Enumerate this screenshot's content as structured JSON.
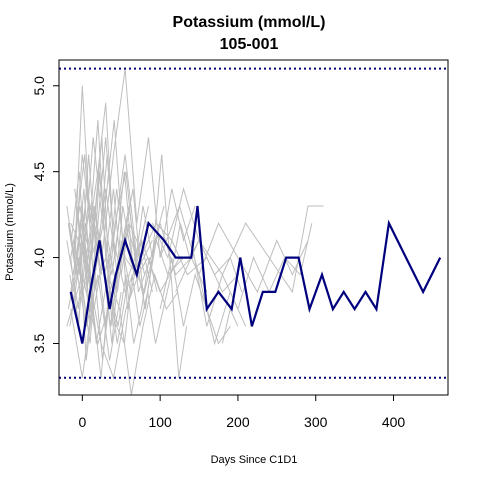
{
  "chart_data": {
    "type": "line",
    "title": "Potassium (mmol/L)",
    "subtitle": "105-001",
    "xlabel": "Days Since C1D1",
    "ylabel": "Potassium (mmol/L)",
    "xlim": [
      -30,
      470
    ],
    "ylim": [
      3.2,
      5.15
    ],
    "xticks": [
      0,
      100,
      200,
      300,
      400
    ],
    "yticks": [
      3.5,
      4.0,
      4.5,
      5.0
    ],
    "reference_lines": [
      5.1,
      3.3
    ],
    "grid": false,
    "legend": "none",
    "highlight_color": "#00007F",
    "background_color": "#BEBEBE",
    "highlight_series": {
      "x": [
        -15,
        0,
        10,
        22,
        35,
        43,
        55,
        70,
        85,
        105,
        120,
        140,
        148,
        160,
        175,
        192,
        203,
        218,
        232,
        248,
        262,
        278,
        292,
        308,
        322,
        336,
        350,
        364,
        378,
        394,
        416,
        438,
        460
      ],
      "y": [
        3.8,
        3.5,
        3.8,
        4.1,
        3.7,
        3.9,
        4.1,
        3.9,
        4.2,
        4.1,
        4.0,
        4.0,
        4.3,
        3.7,
        3.8,
        3.7,
        4.0,
        3.6,
        3.8,
        3.8,
        4.0,
        4.0,
        3.7,
        3.9,
        3.7,
        3.8,
        3.7,
        3.8,
        3.7,
        4.2,
        4.0,
        3.8,
        4.0
      ]
    },
    "background_series": [
      {
        "x": [
          -15,
          5,
          15,
          28,
          40,
          55,
          75,
          95,
          115,
          135,
          160,
          180,
          200
        ],
        "y": [
          4.2,
          4.0,
          4.3,
          3.9,
          4.1,
          3.8,
          4.0,
          4.2,
          4.1,
          3.9,
          4.0,
          3.8,
          3.9
        ]
      },
      {
        "x": [
          -10,
          0,
          10,
          22,
          35,
          50,
          65,
          80,
          95,
          110,
          130
        ],
        "y": [
          3.9,
          4.3,
          3.6,
          4.5,
          3.8,
          4.0,
          4.4,
          3.7,
          4.1,
          3.9,
          4.0
        ]
      },
      {
        "x": [
          -20,
          -5,
          8,
          18,
          30,
          45,
          60
        ],
        "y": [
          4.1,
          3.7,
          4.6,
          4.0,
          4.4,
          3.9,
          4.2
        ]
      },
      {
        "x": [
          -15,
          -2,
          12,
          25,
          38,
          52,
          68,
          90
        ],
        "y": [
          3.8,
          4.2,
          4.0,
          4.7,
          3.6,
          4.3,
          3.9,
          4.1
        ]
      },
      {
        "x": [
          -12,
          3,
          14,
          27,
          41,
          58,
          76,
          100,
          125
        ],
        "y": [
          4.0,
          4.6,
          3.9,
          4.2,
          4.8,
          3.7,
          4.1,
          3.8,
          4.0
        ]
      },
      {
        "x": [
          -18,
          -5,
          10,
          20,
          32,
          44,
          55,
          70
        ],
        "y": [
          3.7,
          4.0,
          3.5,
          4.1,
          3.8,
          4.4,
          4.0,
          3.9
        ]
      },
      {
        "x": [
          -8,
          5,
          18,
          30,
          42,
          56,
          72,
          88,
          105
        ],
        "y": [
          4.3,
          3.9,
          4.1,
          3.6,
          4.2,
          4.5,
          3.8,
          4.0,
          4.3
        ]
      },
      {
        "x": [
          -15,
          -5,
          0,
          5
        ],
        "y": [
          4.0,
          3.6,
          3.9,
          4.2
        ]
      },
      {
        "x": [
          -14,
          -4,
          6,
          16,
          28,
          40
        ],
        "y": [
          4.1,
          4.5,
          3.8,
          4.3,
          3.9,
          4.1
        ]
      },
      {
        "x": [
          -16,
          -6,
          4,
          15,
          26,
          38,
          50,
          62
        ],
        "y": [
          3.6,
          3.9,
          4.2,
          3.7,
          4.0,
          3.5,
          4.1,
          3.8
        ]
      },
      {
        "x": [
          -20,
          -10,
          0,
          10,
          20,
          30,
          40,
          50,
          60,
          70,
          80
        ],
        "y": [
          4.3,
          4.0,
          4.6,
          4.2,
          4.8,
          4.0,
          4.4,
          3.9,
          4.2,
          4.1,
          3.9
        ]
      },
      {
        "x": [
          -12,
          0,
          12,
          24,
          36,
          48,
          60,
          72,
          84
        ],
        "y": [
          3.9,
          4.2,
          3.8,
          4.1,
          3.6,
          4.0,
          4.3,
          3.9,
          4.0
        ]
      },
      {
        "x": [
          -10,
          2,
          14,
          26,
          38,
          50
        ],
        "y": [
          4.4,
          4.0,
          4.7,
          4.2,
          3.9,
          4.3
        ]
      },
      {
        "x": [
          -15,
          -3,
          9,
          21,
          33,
          45,
          57,
          69,
          81,
          93
        ],
        "y": [
          4.0,
          4.3,
          3.9,
          4.5,
          4.1,
          3.8,
          4.2,
          4.0,
          3.7,
          4.1
        ]
      },
      {
        "x": [
          -18,
          -8,
          2,
          12,
          22,
          32,
          42
        ],
        "y": [
          4.2,
          3.9,
          4.4,
          3.8,
          4.1,
          4.6,
          4.0
        ]
      },
      {
        "x": [
          -11,
          1,
          13,
          25
        ],
        "y": [
          4.1,
          3.8,
          4.2,
          3.9
        ]
      },
      {
        "x": [
          -5,
          5,
          15
        ],
        "y": [
          4.2,
          3.4,
          3.8
        ]
      },
      {
        "x": [
          -15,
          0,
          15,
          30,
          45,
          60,
          75,
          90
        ],
        "y": [
          3.7,
          3.3,
          3.8,
          4.0,
          3.5,
          3.9,
          4.1,
          3.8
        ]
      },
      {
        "x": [
          -10,
          5,
          20,
          35,
          50
        ],
        "y": [
          4.0,
          3.6,
          3.9,
          3.4,
          3.8
        ]
      },
      {
        "x": [
          -12,
          3,
          18,
          33,
          48,
          63,
          78,
          93,
          108,
          123
        ],
        "y": [
          3.8,
          4.1,
          3.5,
          3.9,
          3.7,
          3.2,
          3.6,
          3.9,
          3.7,
          3.8
        ]
      },
      {
        "x": [
          -16,
          -6,
          4,
          14,
          24,
          34,
          44,
          54,
          64,
          74,
          84,
          94,
          104,
          114,
          124,
          134
        ],
        "y": [
          3.9,
          3.6,
          4.0,
          3.7,
          3.3,
          3.8,
          3.6,
          3.5,
          3.9,
          3.6,
          3.8,
          3.5,
          3.7,
          3.9,
          3.3,
          3.6
        ]
      },
      {
        "x": [
          -8,
          8,
          24,
          40,
          56,
          72
        ],
        "y": [
          3.7,
          3.9,
          3.5,
          3.3,
          3.7,
          3.9
        ]
      },
      {
        "x": [
          -14,
          -4,
          6,
          16,
          26,
          36,
          46,
          56,
          66,
          76,
          86,
          96
        ],
        "y": [
          3.8,
          4.0,
          3.6,
          3.9,
          3.4,
          3.8,
          3.6,
          3.9,
          3.5,
          3.7,
          4.0,
          3.8
        ]
      },
      {
        "x": [
          -20,
          0,
          20,
          40
        ],
        "y": [
          3.6,
          3.9,
          3.5,
          3.8
        ]
      },
      {
        "x": [
          -10,
          0,
          10,
          20,
          30,
          40,
          55,
          70,
          85
        ],
        "y": [
          4.0,
          5.0,
          4.2,
          4.5,
          4.9,
          4.1,
          4.6,
          4.0,
          4.3
        ]
      },
      {
        "x": [
          -5,
          10,
          25,
          40,
          55,
          70,
          85,
          100,
          115,
          130,
          145
        ],
        "y": [
          3.9,
          4.3,
          4.0,
          4.6,
          5.1,
          4.2,
          4.7,
          4.0,
          4.4,
          4.1,
          4.3
        ]
      },
      {
        "x": [
          -18,
          -6,
          6,
          18,
          30,
          42,
          54,
          66,
          78,
          90,
          102,
          114,
          126,
          138,
          150
        ],
        "y": [
          4.2,
          3.9,
          4.4,
          4.1,
          4.7,
          4.0,
          4.5,
          3.9,
          4.3,
          4.0,
          4.6,
          3.9,
          4.2,
          4.0,
          4.1
        ]
      },
      {
        "x": [
          100,
          125,
          150,
          175,
          200,
          225,
          250,
          270,
          290
        ],
        "y": [
          4.0,
          4.3,
          3.9,
          4.2,
          4.0,
          3.8,
          4.1,
          3.9,
          4.1
        ]
      },
      {
        "x": [
          120,
          150,
          180,
          210,
          240,
          270,
          290,
          310
        ],
        "y": [
          3.8,
          4.1,
          3.9,
          4.2,
          4.0,
          3.8,
          4.3,
          4.3
        ]
      },
      {
        "x": [
          140,
          160,
          180,
          200,
          220,
          240,
          260,
          280,
          295
        ],
        "y": [
          4.1,
          3.6,
          3.9,
          3.7,
          4.0,
          3.8,
          4.0,
          3.9,
          4.2
        ]
      },
      {
        "x": [
          150,
          170,
          190,
          210
        ],
        "y": [
          3.9,
          3.5,
          3.8,
          3.6
        ]
      },
      {
        "x": [
          100,
          115,
          130,
          145,
          160,
          175,
          190
        ],
        "y": [
          3.7,
          4.0,
          3.6,
          3.9,
          3.7,
          3.5,
          3.6
        ]
      },
      {
        "x": [
          90,
          110,
          130,
          150,
          170,
          190,
          205
        ],
        "y": [
          4.2,
          4.0,
          4.4,
          4.1,
          3.9,
          4.0,
          3.8
        ]
      },
      {
        "x": [
          180,
          190,
          200
        ],
        "y": [
          3.5,
          3.7,
          3.6
        ]
      },
      {
        "x": [
          60,
          80,
          100,
          120,
          140,
          160
        ],
        "y": [
          4.0,
          3.8,
          4.2,
          3.9,
          4.0,
          3.8
        ]
      }
    ]
  }
}
